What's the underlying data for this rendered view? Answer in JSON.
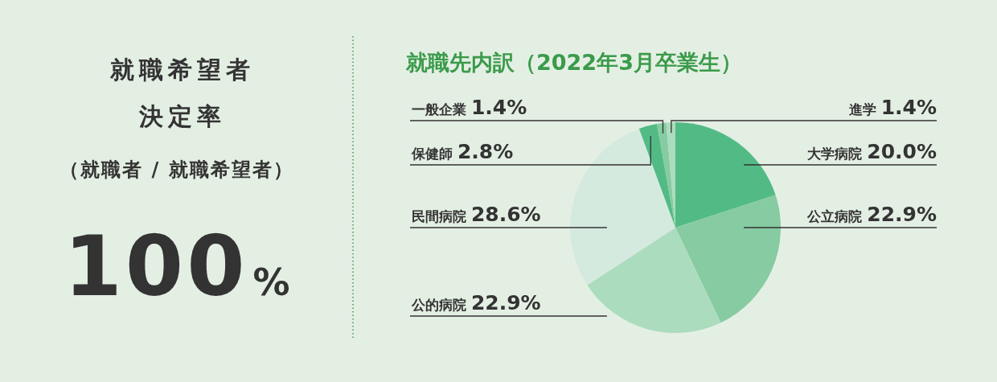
{
  "chart_data": [
    {
      "type": "other",
      "title": "就職希望者決定率",
      "subtitle": "（就職者 / 就職希望者）",
      "annotations": [
        "100%"
      ]
    },
    {
      "type": "pie",
      "title": "就職先内訳（2022年3月卒業生）",
      "categories": [
        "大学病院",
        "公立病院",
        "公的病院",
        "民間病院",
        "保健師",
        "一般企業",
        "進学"
      ],
      "values": [
        20.0,
        22.9,
        22.9,
        28.6,
        2.8,
        1.4,
        1.4
      ],
      "value_labels": [
        "20.0%",
        "22.9%",
        "22.9%",
        "28.6%",
        "2.8%",
        "1.4%",
        "1.4%"
      ],
      "colors": [
        "#52bb85",
        "#86cba2",
        "#acdcbe",
        "#d5eadf",
        "#52bb85",
        "#86cba2",
        "#acdcbe"
      ]
    }
  ]
}
